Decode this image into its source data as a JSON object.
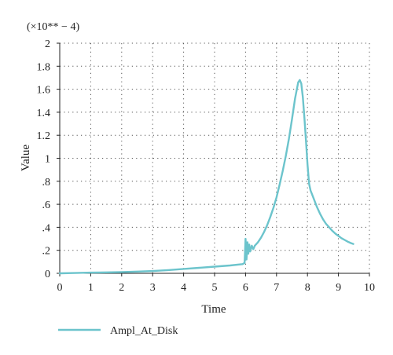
{
  "chart_data": {
    "type": "line",
    "title": "",
    "multiplier_label": "(×10** − 4)",
    "xlabel": "Time",
    "ylabel": "Value",
    "xlim": [
      0,
      10
    ],
    "ylim": [
      0,
      2
    ],
    "x_ticks": [
      "0",
      "1",
      "2",
      "3",
      "4",
      "5",
      "6",
      "7",
      "8",
      "9",
      "10"
    ],
    "y_ticks": [
      "0",
      ".2",
      ".4",
      ".6",
      ".8",
      "1",
      "1.2",
      "1.4",
      "1.6",
      "1.8",
      "2"
    ],
    "grid": true,
    "legend_position": "bottom-left",
    "series": [
      {
        "name": "Ampl_At_Disk",
        "color": "#6cc4cc",
        "points": [
          [
            0,
            0.0
          ],
          [
            0.5,
            0.003
          ],
          [
            1.0,
            0.006
          ],
          [
            1.5,
            0.008
          ],
          [
            2.0,
            0.011
          ],
          [
            2.5,
            0.015
          ],
          [
            3.0,
            0.02
          ],
          [
            3.5,
            0.028
          ],
          [
            4.0,
            0.038
          ],
          [
            4.5,
            0.048
          ],
          [
            5.0,
            0.058
          ],
          [
            5.5,
            0.068
          ],
          [
            5.9,
            0.08
          ],
          [
            5.97,
            0.09
          ],
          [
            6.0,
            0.3
          ],
          [
            6.03,
            0.12
          ],
          [
            6.06,
            0.27
          ],
          [
            6.09,
            0.17
          ],
          [
            6.12,
            0.25
          ],
          [
            6.15,
            0.19
          ],
          [
            6.2,
            0.24
          ],
          [
            6.25,
            0.21
          ],
          [
            6.3,
            0.24
          ],
          [
            6.4,
            0.27
          ],
          [
            6.5,
            0.31
          ],
          [
            6.6,
            0.36
          ],
          [
            6.7,
            0.42
          ],
          [
            6.8,
            0.49
          ],
          [
            6.9,
            0.57
          ],
          [
            7.0,
            0.66
          ],
          [
            7.1,
            0.77
          ],
          [
            7.2,
            0.89
          ],
          [
            7.3,
            1.02
          ],
          [
            7.4,
            1.17
          ],
          [
            7.5,
            1.34
          ],
          [
            7.6,
            1.52
          ],
          [
            7.7,
            1.66
          ],
          [
            7.75,
            1.68
          ],
          [
            7.8,
            1.65
          ],
          [
            7.85,
            1.53
          ],
          [
            7.9,
            1.35
          ],
          [
            7.95,
            1.16
          ],
          [
            8.0,
            0.95
          ],
          [
            8.05,
            0.78
          ],
          [
            8.1,
            0.72
          ],
          [
            8.2,
            0.65
          ],
          [
            8.3,
            0.58
          ],
          [
            8.4,
            0.52
          ],
          [
            8.5,
            0.47
          ],
          [
            8.6,
            0.43
          ],
          [
            8.7,
            0.4
          ],
          [
            8.8,
            0.37
          ],
          [
            8.9,
            0.345
          ],
          [
            9.0,
            0.325
          ],
          [
            9.1,
            0.305
          ],
          [
            9.2,
            0.29
          ],
          [
            9.3,
            0.275
          ],
          [
            9.4,
            0.263
          ],
          [
            9.48,
            0.255
          ]
        ]
      }
    ]
  }
}
